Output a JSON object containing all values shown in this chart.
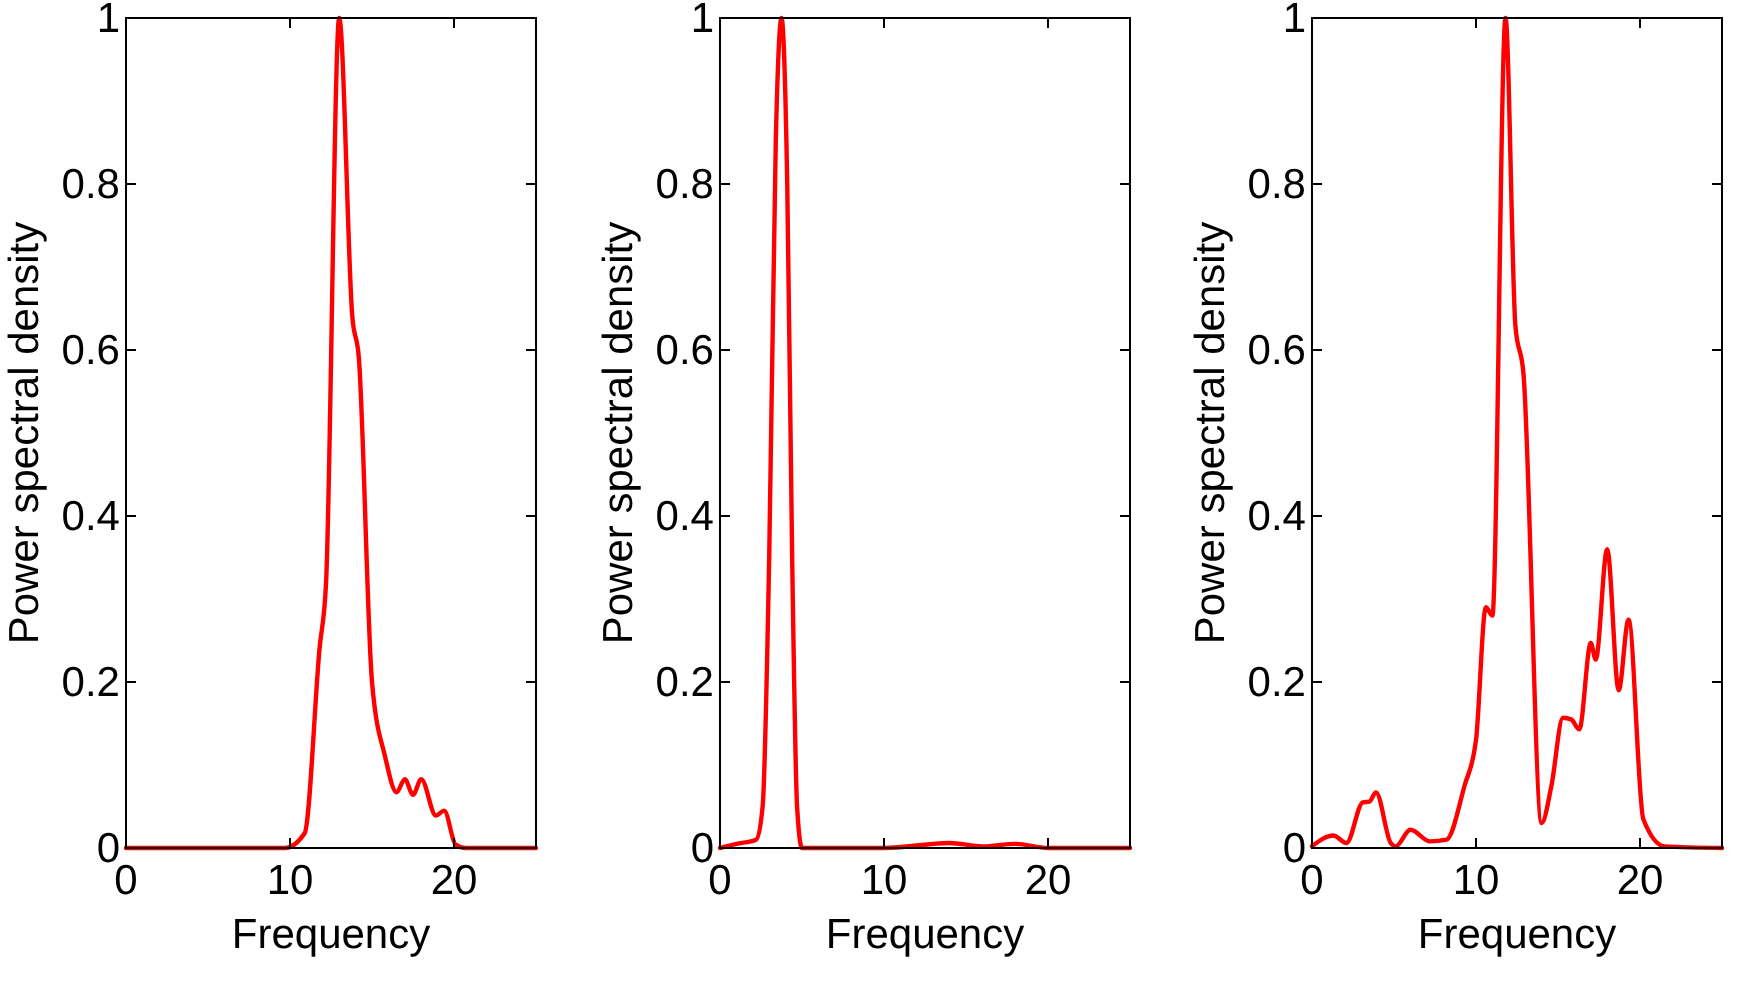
{
  "chart_data": [
    {
      "type": "line",
      "xlabel": "Frequency",
      "ylabel": "Power spectral density",
      "xlim": [
        0,
        25
      ],
      "xticks": [
        0,
        10,
        20
      ],
      "ylim": [
        0,
        1
      ],
      "yticks": [
        0,
        0.2,
        0.4,
        0.6,
        0.8,
        1
      ],
      "grid": false,
      "marker": "none",
      "line_style": "solid",
      "series": [
        {
          "color": "#ff0000",
          "x": [
            0,
            9.7,
            10.9,
            11.8,
            12.2,
            13.0,
            13.8,
            14.2,
            15.0,
            15.8,
            16.5,
            17.0,
            17.5,
            18.0,
            18.9,
            19.4,
            20.1,
            20.7,
            25
          ],
          "values": [
            0,
            0,
            0.018,
            0.24,
            0.32,
            1.0,
            0.64,
            0.59,
            0.2,
            0.11,
            0.067,
            0.083,
            0.064,
            0.083,
            0.039,
            0.045,
            0.004,
            0,
            0
          ]
        }
      ]
    },
    {
      "type": "line",
      "xlabel": "Frequency",
      "ylabel": "Power spectral density",
      "xlim": [
        0,
        25
      ],
      "xticks": [
        0,
        10,
        20
      ],
      "ylim": [
        0,
        1
      ],
      "yticks": [
        0,
        0.2,
        0.4,
        0.6,
        0.8,
        1
      ],
      "grid": false,
      "marker": "none",
      "line_style": "solid",
      "series": [
        {
          "color": "#ff0000",
          "x": [
            0,
            1.0,
            2.2,
            2.6,
            3.0,
            3.4,
            3.75,
            4.1,
            4.4,
            4.7,
            5.0,
            10,
            14,
            16,
            18,
            20,
            25
          ],
          "values": [
            0,
            0.005,
            0.01,
            0.05,
            0.35,
            0.85,
            1.0,
            0.8,
            0.35,
            0.05,
            0,
            0,
            0.006,
            0.002,
            0.005,
            0,
            0
          ]
        }
      ]
    },
    {
      "type": "line",
      "xlabel": "Frequency",
      "ylabel": "Power spectral density",
      "xlim": [
        0,
        25
      ],
      "xticks": [
        0,
        10,
        20
      ],
      "ylim": [
        0,
        1
      ],
      "yticks": [
        0,
        0.2,
        0.4,
        0.6,
        0.8,
        1
      ],
      "grid": false,
      "marker": "none",
      "line_style": "solid",
      "series": [
        {
          "color": "#ff0000",
          "x": [
            0,
            1.3,
            2.1,
            3.1,
            3.5,
            3.9,
            4.8,
            5.1,
            6.0,
            7.2,
            8.2,
            9.3,
            10.0,
            10.6,
            11.0,
            11.8,
            12.4,
            12.9,
            14.0,
            14.6,
            15.3,
            15.8,
            16.3,
            17.0,
            17.3,
            18.0,
            18.7,
            19.3,
            20.2,
            21.5,
            25
          ],
          "values": [
            0.002,
            0.015,
            0.006,
            0.055,
            0.056,
            0.067,
            0.006,
            0.002,
            0.022,
            0.008,
            0.01,
            0.075,
            0.13,
            0.29,
            0.28,
            1.0,
            0.63,
            0.57,
            0.03,
            0.075,
            0.157,
            0.155,
            0.143,
            0.247,
            0.227,
            0.36,
            0.19,
            0.275,
            0.035,
            0.002,
            0
          ]
        }
      ]
    }
  ]
}
